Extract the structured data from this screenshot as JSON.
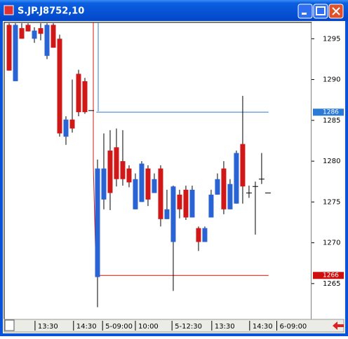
{
  "chart_data": {
    "type": "candlestick",
    "title": "S.JP.J8752,10",
    "up_color": "#d01818",
    "down_color": "#2a64d4",
    "open": [
      1291.1,
      1296.7,
      1295.0,
      1295.9,
      1296.0,
      1295.6,
      1296.7,
      1293.9,
      1283.4,
      1285.1,
      1284.0,
      1286.0,
      1286.0,
      1286.2,
      1279.1,
      1279.1,
      1276.1,
      1277.8,
      1277.8,
      1277.4,
      1277.8,
      1279.7,
      1275.3,
      1277.8,
      1272.9,
      1274.1,
      1276.9,
      1274.1,
      1273.1,
      1276.5,
      1270.1,
      1271.8,
      1275.9,
      1277.8,
      1274.1,
      1277.2,
      1281.0,
      1276.9,
      1276.1,
      1276.9,
      1277.8,
      1276.1
    ],
    "high": [
      1296.9,
      1296.9,
      1296.9,
      1296.9,
      1296.4,
      1296.9,
      1296.9,
      1296.9,
      1295.5,
      1285.5,
      1290.0,
      1291.2,
      1290.2,
      1286.2,
      1280.2,
      1283.4,
      1283.8,
      1284.0,
      1283.8,
      1279.5,
      1278.5,
      1280.0,
      1279.5,
      1278.5,
      1279.5,
      1276.5,
      1277.0,
      1276.5,
      1277.0,
      1277.0,
      1272.0,
      1272.0,
      1276.5,
      1278.5,
      1280.0,
      1277.8,
      1281.3,
      1288.0,
      1277.0,
      1277.5,
      1281.0,
      1276.1
    ],
    "low": [
      1291.1,
      1289.8,
      1295.0,
      1295.9,
      1294.5,
      1294.8,
      1292.5,
      1293.9,
      1283.0,
      1282.0,
      1283.5,
      1285.5,
      1285.8,
      1286.2,
      1262.1,
      1274.1,
      1274.0,
      1276.9,
      1277.0,
      1276.8,
      1274.1,
      1275.0,
      1274.5,
      1276.1,
      1272.0,
      1272.9,
      1264.1,
      1273.0,
      1272.8,
      1273.1,
      1269.0,
      1270.1,
      1273.1,
      1275.9,
      1273.5,
      1274.1,
      1274.8,
      1274.8,
      1275.5,
      1271.0,
      1277.2,
      1276.1
    ],
    "close": [
      1296.7,
      1289.8,
      1296.3,
      1296.7,
      1295.0,
      1296.3,
      1292.9,
      1296.7,
      1295.0,
      1283.0,
      1285.1,
      1290.7,
      1289.8,
      1286.2,
      1265.8,
      1275.3,
      1281.3,
      1281.7,
      1280.0,
      1279.1,
      1274.1,
      1275.0,
      1279.1,
      1276.1,
      1279.1,
      1272.9,
      1270.1,
      1275.9,
      1276.5,
      1273.1,
      1271.8,
      1270.1,
      1273.1,
      1275.9,
      1279.1,
      1274.1,
      1274.8,
      1282.1,
      1276.1,
      1276.9,
      1277.8,
      1276.1
    ],
    "levels": [
      1286,
      1266
    ],
    "level_colors": [
      "#2a7ad8",
      "#cc1010"
    ],
    "xlim": [
      -0.78,
      47.9
    ],
    "xticks": [
      {
        "value": 4.1,
        "label": "13:30"
      },
      {
        "value": 10.2,
        "label": "14:30"
      },
      {
        "value": 14.8,
        "label": "5-09:00"
      },
      {
        "value": 20,
        "label": "10:00"
      },
      {
        "value": 25.8,
        "label": "5-12:30"
      },
      {
        "value": 32.1,
        "label": "13:30"
      },
      {
        "value": 38.1,
        "label": "14:30"
      },
      {
        "value": 42.4,
        "label": "6-09:00"
      }
    ],
    "ylim": [
      1260.7,
      1297
    ],
    "yticks": [
      1265,
      1270,
      1275,
      1280,
      1285,
      1290,
      1295
    ]
  }
}
